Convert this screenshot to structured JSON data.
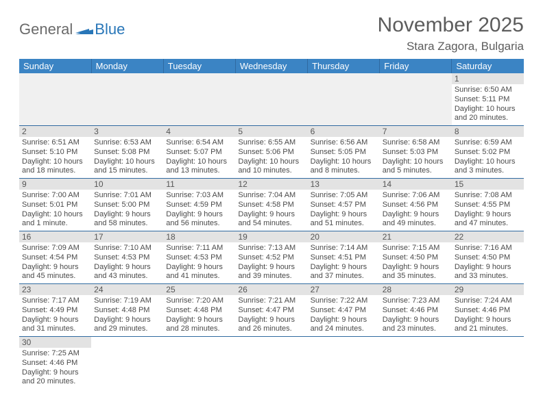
{
  "logo": {
    "text_gray": "General",
    "text_blue": "Blue"
  },
  "title": "November 2025",
  "location": "Stara Zagora, Bulgaria",
  "colors": {
    "header_bg": "#3b84c4",
    "header_text": "#ffffff",
    "row_border": "#2f6aa0",
    "daynum_bg": "#e3e3e3",
    "text_gray": "#5c5c5c",
    "logo_blue": "#2876b8"
  },
  "day_headers": [
    "Sunday",
    "Monday",
    "Tuesday",
    "Wednesday",
    "Thursday",
    "Friday",
    "Saturday"
  ],
  "weeks": [
    [
      null,
      null,
      null,
      null,
      null,
      null,
      {
        "n": "1",
        "sunrise": "6:50 AM",
        "sunset": "5:11 PM",
        "daylight": "10 hours and 20 minutes."
      }
    ],
    [
      {
        "n": "2",
        "sunrise": "6:51 AM",
        "sunset": "5:10 PM",
        "daylight": "10 hours and 18 minutes."
      },
      {
        "n": "3",
        "sunrise": "6:53 AM",
        "sunset": "5:08 PM",
        "daylight": "10 hours and 15 minutes."
      },
      {
        "n": "4",
        "sunrise": "6:54 AM",
        "sunset": "5:07 PM",
        "daylight": "10 hours and 13 minutes."
      },
      {
        "n": "5",
        "sunrise": "6:55 AM",
        "sunset": "5:06 PM",
        "daylight": "10 hours and 10 minutes."
      },
      {
        "n": "6",
        "sunrise": "6:56 AM",
        "sunset": "5:05 PM",
        "daylight": "10 hours and 8 minutes."
      },
      {
        "n": "7",
        "sunrise": "6:58 AM",
        "sunset": "5:03 PM",
        "daylight": "10 hours and 5 minutes."
      },
      {
        "n": "8",
        "sunrise": "6:59 AM",
        "sunset": "5:02 PM",
        "daylight": "10 hours and 3 minutes."
      }
    ],
    [
      {
        "n": "9",
        "sunrise": "7:00 AM",
        "sunset": "5:01 PM",
        "daylight": "10 hours and 1 minute."
      },
      {
        "n": "10",
        "sunrise": "7:01 AM",
        "sunset": "5:00 PM",
        "daylight": "9 hours and 58 minutes."
      },
      {
        "n": "11",
        "sunrise": "7:03 AM",
        "sunset": "4:59 PM",
        "daylight": "9 hours and 56 minutes."
      },
      {
        "n": "12",
        "sunrise": "7:04 AM",
        "sunset": "4:58 PM",
        "daylight": "9 hours and 54 minutes."
      },
      {
        "n": "13",
        "sunrise": "7:05 AM",
        "sunset": "4:57 PM",
        "daylight": "9 hours and 51 minutes."
      },
      {
        "n": "14",
        "sunrise": "7:06 AM",
        "sunset": "4:56 PM",
        "daylight": "9 hours and 49 minutes."
      },
      {
        "n": "15",
        "sunrise": "7:08 AM",
        "sunset": "4:55 PM",
        "daylight": "9 hours and 47 minutes."
      }
    ],
    [
      {
        "n": "16",
        "sunrise": "7:09 AM",
        "sunset": "4:54 PM",
        "daylight": "9 hours and 45 minutes."
      },
      {
        "n": "17",
        "sunrise": "7:10 AM",
        "sunset": "4:53 PM",
        "daylight": "9 hours and 43 minutes."
      },
      {
        "n": "18",
        "sunrise": "7:11 AM",
        "sunset": "4:53 PM",
        "daylight": "9 hours and 41 minutes."
      },
      {
        "n": "19",
        "sunrise": "7:13 AM",
        "sunset": "4:52 PM",
        "daylight": "9 hours and 39 minutes."
      },
      {
        "n": "20",
        "sunrise": "7:14 AM",
        "sunset": "4:51 PM",
        "daylight": "9 hours and 37 minutes."
      },
      {
        "n": "21",
        "sunrise": "7:15 AM",
        "sunset": "4:50 PM",
        "daylight": "9 hours and 35 minutes."
      },
      {
        "n": "22",
        "sunrise": "7:16 AM",
        "sunset": "4:50 PM",
        "daylight": "9 hours and 33 minutes."
      }
    ],
    [
      {
        "n": "23",
        "sunrise": "7:17 AM",
        "sunset": "4:49 PM",
        "daylight": "9 hours and 31 minutes."
      },
      {
        "n": "24",
        "sunrise": "7:19 AM",
        "sunset": "4:48 PM",
        "daylight": "9 hours and 29 minutes."
      },
      {
        "n": "25",
        "sunrise": "7:20 AM",
        "sunset": "4:48 PM",
        "daylight": "9 hours and 28 minutes."
      },
      {
        "n": "26",
        "sunrise": "7:21 AM",
        "sunset": "4:47 PM",
        "daylight": "9 hours and 26 minutes."
      },
      {
        "n": "27",
        "sunrise": "7:22 AM",
        "sunset": "4:47 PM",
        "daylight": "9 hours and 24 minutes."
      },
      {
        "n": "28",
        "sunrise": "7:23 AM",
        "sunset": "4:46 PM",
        "daylight": "9 hours and 23 minutes."
      },
      {
        "n": "29",
        "sunrise": "7:24 AM",
        "sunset": "4:46 PM",
        "daylight": "9 hours and 21 minutes."
      }
    ],
    [
      {
        "n": "30",
        "sunrise": "7:25 AM",
        "sunset": "4:46 PM",
        "daylight": "9 hours and 20 minutes."
      },
      null,
      null,
      null,
      null,
      null,
      null
    ]
  ],
  "labels": {
    "sunrise": "Sunrise:",
    "sunset": "Sunset:",
    "daylight": "Daylight:"
  }
}
